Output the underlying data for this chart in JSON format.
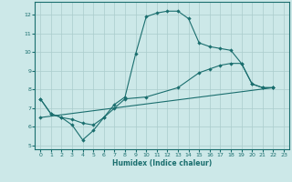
{
  "title": "",
  "xlabel": "Humidex (Indice chaleur)",
  "xlim": [
    -0.5,
    23.5
  ],
  "ylim": [
    4.8,
    12.7
  ],
  "xticks": [
    0,
    1,
    2,
    3,
    4,
    5,
    6,
    7,
    8,
    9,
    10,
    11,
    12,
    13,
    14,
    15,
    16,
    17,
    18,
    19,
    20,
    21,
    22,
    23
  ],
  "yticks": [
    5,
    6,
    7,
    8,
    9,
    10,
    11,
    12
  ],
  "bg_color": "#cce8e8",
  "line_color": "#1a6e6e",
  "grid_color": "#aacccc",
  "curve1_x": [
    0,
    1,
    2,
    3,
    4,
    5,
    6,
    7,
    8,
    9,
    10,
    11,
    12,
    13,
    14,
    15,
    16,
    17,
    18,
    19,
    20,
    21,
    22
  ],
  "curve1_y": [
    7.5,
    6.7,
    6.5,
    6.1,
    5.3,
    5.8,
    6.5,
    7.2,
    7.6,
    9.9,
    11.9,
    12.1,
    12.2,
    12.2,
    11.8,
    10.5,
    10.3,
    10.2,
    10.1,
    9.4,
    8.3,
    8.1,
    8.1
  ],
  "curve2_x": [
    0,
    1,
    2,
    3,
    4,
    5,
    6,
    7,
    8,
    10,
    13,
    15,
    16,
    17,
    18,
    19,
    20,
    21,
    22
  ],
  "curve2_y": [
    7.5,
    6.7,
    6.5,
    6.4,
    6.2,
    6.1,
    6.5,
    7.0,
    7.5,
    7.6,
    8.1,
    8.9,
    9.1,
    9.3,
    9.4,
    9.4,
    8.3,
    8.1,
    8.1
  ],
  "curve3_x": [
    0,
    22
  ],
  "curve3_y": [
    6.5,
    8.1
  ]
}
